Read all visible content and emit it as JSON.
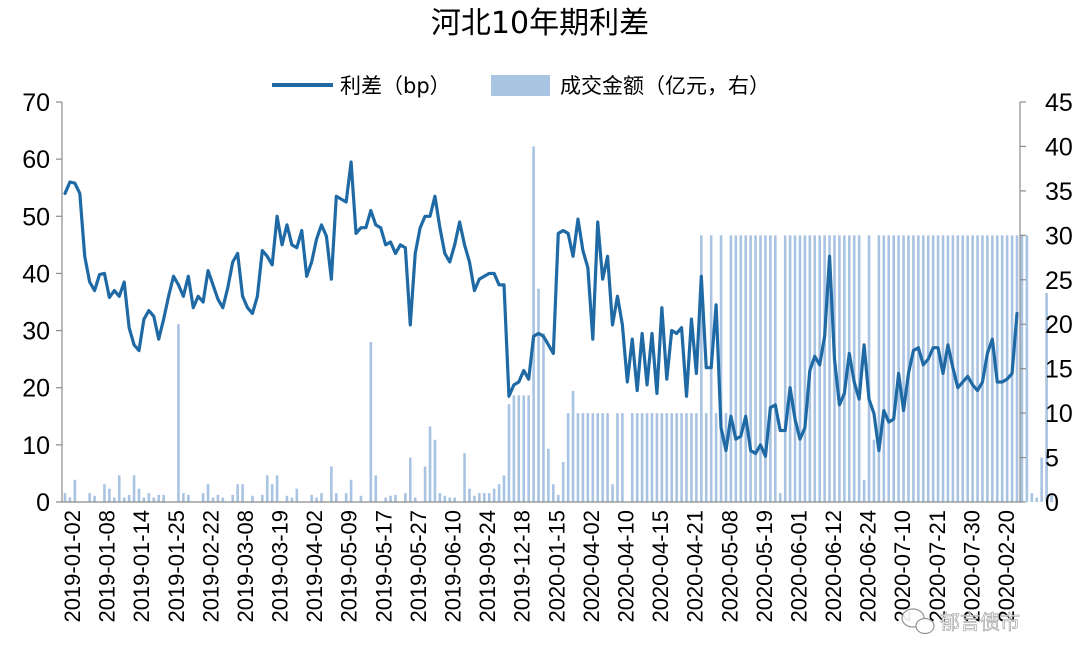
{
  "chart_data": {
    "type": "line+bar",
    "title": "河北10年期利差",
    "legend": {
      "placement": "top",
      "line_label": "利差（bp）",
      "bar_label": "成交金额（亿元，右）"
    },
    "colors": {
      "line": "#1f6aa5",
      "bar": "#a9c4e2",
      "axis": "#8c8c8c"
    },
    "y_left": {
      "range": [
        0,
        70
      ],
      "ticks": [
        "0",
        "10",
        "20",
        "30",
        "40",
        "50",
        "60",
        "70"
      ]
    },
    "y_right": {
      "range": [
        0,
        45
      ],
      "ticks": [
        "0",
        "5",
        "10",
        "15",
        "20",
        "25",
        "30",
        "35",
        "40",
        "45"
      ]
    },
    "x_tick_labels": [
      "2019-01-02",
      "2019-01-08",
      "2019-01-14",
      "2019-01-25",
      "2019-02-22",
      "2019-03-08",
      "2019-03-19",
      "2019-04-02",
      "2019-05-09",
      "2019-05-17",
      "2019-05-27",
      "2019-06-10",
      "2019-09-24",
      "2019-12-18",
      "2020-01-15",
      "2020-04-02",
      "2020-04-10",
      "2020-04-15",
      "2020-04-21",
      "2020-05-08",
      "2020-05-19",
      "2020-06-01",
      "2020-06-12",
      "2020-06-24",
      "2020-07-10",
      "2020-07-21",
      "2020-07-30",
      "2020-02-20"
    ],
    "series": [
      {
        "name": "利差（bp）",
        "axis": "left",
        "values": [
          54,
          56,
          55.8,
          54,
          43,
          38.5,
          37,
          39.8,
          40,
          35.8,
          37,
          36,
          38.5,
          30.5,
          27.5,
          26.5,
          32,
          33.5,
          32.5,
          28.5,
          32,
          36,
          39.5,
          38,
          36,
          39.5,
          34,
          36,
          35,
          40.5,
          38,
          35.5,
          34,
          37.5,
          42,
          43.5,
          36,
          34,
          33,
          36,
          44,
          43,
          41.5,
          50,
          45,
          48.5,
          45,
          44.5,
          47.5,
          39.5,
          42,
          46,
          48.5,
          46.5,
          39,
          53.5,
          53,
          52.5,
          59.5,
          47,
          48,
          48,
          51,
          48.5,
          48,
          45,
          45.5,
          43.5,
          45,
          44.5,
          31,
          43.5,
          48,
          50,
          50,
          53.5,
          48,
          43.5,
          42,
          45,
          49,
          45,
          42,
          37,
          39,
          39.5,
          40,
          40,
          38,
          38,
          18.5,
          20.5,
          21,
          23,
          21.5,
          29,
          29.5,
          29,
          27.5,
          26,
          47,
          47.5,
          47,
          43,
          49.5,
          44,
          41,
          28.5,
          49,
          39,
          43,
          31,
          36,
          31,
          21,
          28.5,
          19.5,
          29.5,
          20.5,
          29.5,
          19,
          34,
          21.5,
          30,
          29.5,
          30.5,
          18.5,
          32,
          22.5,
          39.5,
          23.5,
          23.5,
          34.5,
          13,
          9,
          15,
          11,
          11.5,
          15,
          9,
          8.5,
          10,
          8,
          16.5,
          17,
          12.5,
          12.5,
          20,
          14.5,
          11,
          13,
          23,
          25.5,
          24,
          29,
          43,
          25,
          17,
          19,
          26,
          21,
          18,
          27.5,
          18,
          15.5,
          9,
          16,
          14,
          14.5,
          22.5,
          16,
          22.5,
          26.5,
          27,
          24,
          25,
          27,
          27,
          22.5,
          27.5,
          23.5,
          20,
          21,
          22,
          20.5,
          19.5,
          21,
          26,
          28.5,
          21,
          21,
          21.5,
          22.5,
          33
        ]
      },
      {
        "name": "成交金额（亿元，右）",
        "axis": "right",
        "values": [
          1,
          0.5,
          2.5,
          0,
          0,
          1,
          0.7,
          0,
          2,
          1.5,
          0.5,
          3,
          0.5,
          0.8,
          3,
          1.5,
          0.5,
          1,
          0.5,
          0.8,
          0.8,
          0,
          0,
          20,
          1,
          0.8,
          0,
          0,
          1,
          2,
          0.5,
          0.8,
          0.5,
          0,
          0.8,
          2,
          2,
          0,
          0.7,
          0,
          0.8,
          3,
          2,
          3,
          0,
          0.7,
          0.5,
          1.5,
          0,
          0,
          0.8,
          0.5,
          1,
          0,
          4,
          1,
          0,
          1,
          2.5,
          0,
          0.7,
          0,
          18,
          3,
          0,
          0.5,
          0.7,
          0.8,
          0,
          1,
          5,
          0.5,
          0,
          4,
          8.5,
          7,
          1,
          0.7,
          0.5,
          0.5,
          0,
          5.5,
          1.5,
          0.7,
          1,
          1,
          1,
          1.5,
          2,
          3,
          11,
          12,
          12,
          12,
          12,
          40,
          24,
          19,
          6,
          2,
          0.8,
          4.5,
          10,
          12.5,
          10,
          10,
          10,
          10,
          10,
          10,
          10,
          2,
          10,
          10,
          0,
          10,
          10,
          10,
          10,
          10,
          10,
          10,
          10,
          10,
          10,
          10,
          10,
          10,
          10,
          30,
          10,
          30,
          10,
          30,
          10,
          30,
          30,
          30,
          30,
          30,
          30,
          30,
          30,
          30,
          30,
          1,
          30,
          30,
          30,
          30,
          30,
          30,
          30,
          30,
          30,
          30,
          30,
          30,
          30,
          30,
          30,
          30,
          2.5,
          30,
          7,
          30,
          30,
          30,
          30,
          30,
          30,
          30,
          30,
          30,
          30,
          30,
          30,
          30,
          30,
          30,
          30,
          30,
          30,
          30,
          30,
          30,
          30,
          30,
          30,
          30,
          30,
          30,
          30,
          30,
          30,
          30,
          1,
          0.5,
          5,
          23.5,
          1
        ]
      }
    ]
  },
  "watermark": {
    "icon": "wechat-icon",
    "text": "郁言债市"
  }
}
